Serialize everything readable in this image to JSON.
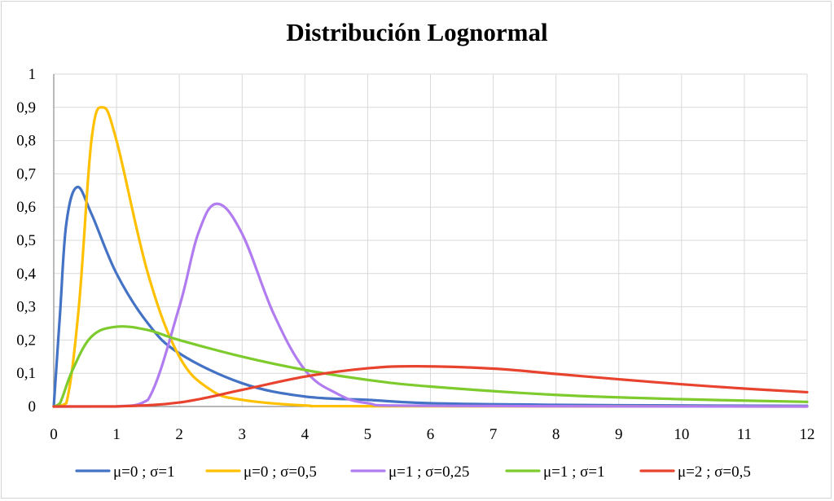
{
  "chart_data": {
    "type": "line",
    "title": "Distribución Lognormal",
    "xlabel": "",
    "ylabel": "",
    "xlim": [
      0,
      12
    ],
    "ylim": [
      0,
      1
    ],
    "x_ticks": [
      "0",
      "1",
      "2",
      "3",
      "4",
      "5",
      "6",
      "7",
      "8",
      "9",
      "10",
      "11",
      "12"
    ],
    "y_ticks": [
      "0",
      "0,1",
      "0,2",
      "0,3",
      "0,4",
      "0,5",
      "0,6",
      "0,7",
      "0,8",
      "0,9",
      "1"
    ],
    "grid": true,
    "legend_position": "bottom",
    "series": [
      {
        "name": "μ=0 ; σ=1",
        "color": "#4472C4",
        "x": [
          0.1,
          0.2,
          0.37,
          0.6,
          1,
          1.5,
          2,
          3,
          4,
          5,
          6,
          8,
          10,
          12
        ],
        "values": [
          0.28,
          0.55,
          0.66,
          0.58,
          0.4,
          0.25,
          0.16,
          0.07,
          0.03,
          0.02,
          0.01,
          0.005,
          0.003,
          0.002
        ]
      },
      {
        "name": "μ=0 ; σ=0,5",
        "color": "#FFC000",
        "x": [
          0.2,
          0.4,
          0.6,
          0.78,
          1,
          1.5,
          2,
          2.5,
          3,
          4,
          5,
          12
        ],
        "values": [
          0.01,
          0.3,
          0.8,
          0.9,
          0.8,
          0.4,
          0.15,
          0.05,
          0.02,
          0.003,
          0.001,
          0
        ]
      },
      {
        "name": "μ=1 ; σ=0,25",
        "color": "#B07CF0",
        "x": [
          1,
          1.5,
          2,
          2.3,
          2.6,
          3,
          3.5,
          4,
          4.5,
          5,
          6,
          12
        ],
        "values": [
          0,
          0.02,
          0.3,
          0.52,
          0.61,
          0.52,
          0.28,
          0.11,
          0.04,
          0.01,
          0.002,
          0
        ]
      },
      {
        "name": "μ=1 ; σ=1",
        "color": "#7DCB2D",
        "x": [
          0.1,
          0.3,
          0.6,
          1,
          1.5,
          2,
          3,
          4,
          5,
          6,
          8,
          10,
          12
        ],
        "values": [
          0.01,
          0.11,
          0.21,
          0.24,
          0.23,
          0.2,
          0.15,
          0.11,
          0.08,
          0.06,
          0.035,
          0.022,
          0.014
        ]
      },
      {
        "name": "μ=2 ; σ=0,5",
        "color": "#E8432E",
        "x": [
          1,
          2,
          3,
          4,
          5,
          5.8,
          7,
          8,
          9,
          10,
          11,
          12
        ],
        "values": [
          0.0003,
          0.012,
          0.05,
          0.09,
          0.115,
          0.121,
          0.114,
          0.098,
          0.082,
          0.067,
          0.054,
          0.043
        ]
      }
    ]
  }
}
